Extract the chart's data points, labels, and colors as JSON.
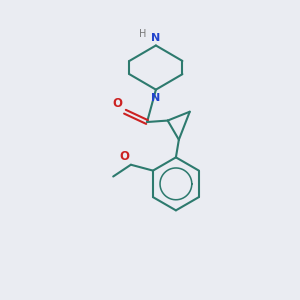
{
  "background_color": "#eaecf2",
  "bond_color": "#2d7a6e",
  "n_color": "#2244cc",
  "o_color": "#cc2222",
  "line_width": 1.5,
  "figsize": [
    3.0,
    3.0
  ],
  "dpi": 100,
  "xlim": [
    0,
    10
  ],
  "ylim": [
    0,
    10
  ]
}
